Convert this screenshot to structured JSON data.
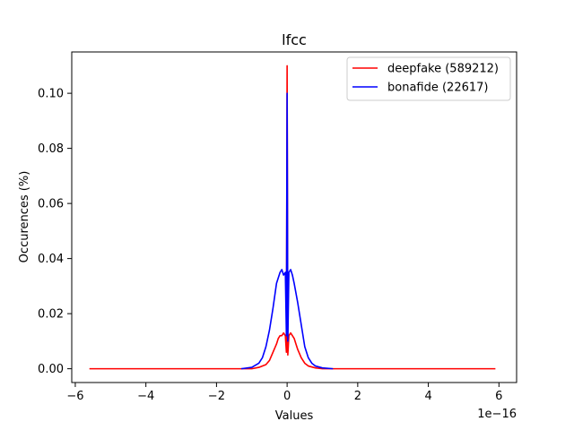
{
  "chart_data": {
    "type": "line",
    "title": "lfcc",
    "xlabel": "Values",
    "ylabel": "Occurences (%)",
    "x_offset_label": "1e−16",
    "xlim": [
      -6.1,
      6.5
    ],
    "ylim": [
      -0.005,
      0.115
    ],
    "xticks": [
      -6,
      -4,
      -2,
      0,
      2,
      4,
      6
    ],
    "xtick_labels": [
      "−6",
      "−4",
      "−2",
      "0",
      "2",
      "4",
      "6"
    ],
    "yticks": [
      0.0,
      0.02,
      0.04,
      0.06,
      0.08,
      0.1
    ],
    "ytick_labels": [
      "0.00",
      "0.02",
      "0.04",
      "0.06",
      "0.08",
      "0.10"
    ],
    "grid": false,
    "legend_position": "top-right",
    "series": [
      {
        "name": "deepfake (589212)",
        "color": "#ff0000",
        "x": [
          -5.6,
          -1.0,
          -0.8,
          -0.6,
          -0.5,
          -0.4,
          -0.3,
          -0.25,
          -0.2,
          -0.15,
          -0.1,
          -0.05,
          -0.02,
          0.0,
          0.02,
          0.05,
          0.1,
          0.15,
          0.2,
          0.25,
          0.3,
          0.4,
          0.5,
          0.6,
          0.8,
          1.0,
          5.9
        ],
        "y": [
          0.0,
          0.0,
          0.0005,
          0.0015,
          0.003,
          0.006,
          0.009,
          0.011,
          0.012,
          0.012,
          0.013,
          0.012,
          0.006,
          0.11,
          0.005,
          0.012,
          0.013,
          0.012,
          0.011,
          0.009,
          0.007,
          0.004,
          0.002,
          0.001,
          0.0003,
          0.0,
          0.0
        ]
      },
      {
        "name": "bonafide (22617)",
        "color": "#0000ff",
        "x": [
          -1.3,
          -1.0,
          -0.8,
          -0.7,
          -0.6,
          -0.5,
          -0.4,
          -0.3,
          -0.2,
          -0.15,
          -0.1,
          -0.05,
          -0.02,
          0.0,
          0.02,
          0.05,
          0.1,
          0.15,
          0.2,
          0.3,
          0.4,
          0.5,
          0.6,
          0.7,
          0.8,
          1.0,
          1.3
        ],
        "y": [
          0.0,
          0.0005,
          0.002,
          0.004,
          0.008,
          0.014,
          0.022,
          0.031,
          0.035,
          0.036,
          0.034,
          0.035,
          0.012,
          0.1,
          0.01,
          0.035,
          0.036,
          0.034,
          0.031,
          0.024,
          0.016,
          0.008,
          0.004,
          0.002,
          0.001,
          0.0003,
          0.0
        ]
      }
    ]
  }
}
